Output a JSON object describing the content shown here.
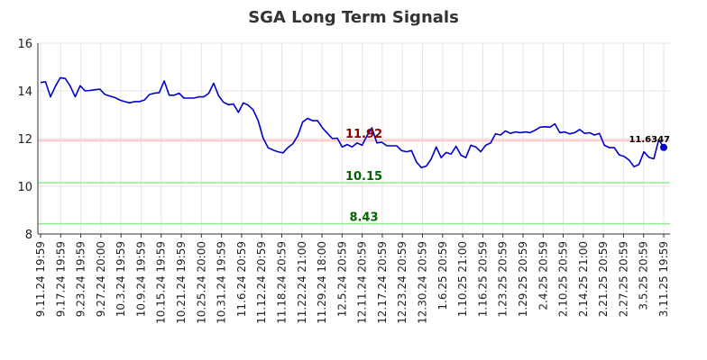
{
  "chart_data": {
    "type": "line",
    "title": "SGA Long Term Signals",
    "xlabel": "",
    "ylabel": "",
    "ylim": [
      8,
      16
    ],
    "yticks": [
      "8",
      "10",
      "12",
      "14",
      "16"
    ],
    "grid": true,
    "colors": {
      "line": "#0000cc",
      "resistance": "#ffcccc",
      "support": "#90ee90",
      "resistance_text": "#8b0000",
      "support_text": "#006400"
    },
    "x_tick_labels": [
      "9.11.24 19:59",
      "9.17.24 19:59",
      "9.23.24 19:59",
      "9.27.24 20:00",
      "10.3.24 19:59",
      "10.9.24 19:59",
      "10.15.24 19:59",
      "10.21.24 19:59",
      "10.25.24 20:00",
      "10.31.24 19:59",
      "11.6.24 20:59",
      "11.12.24 20:59",
      "11.18.24 20:59",
      "11.22.24 21:00",
      "11.29.24 18:00",
      "12.5.24 20:59",
      "12.11.24 20:59",
      "12.17.24 20:59",
      "12.23.24 20:59",
      "12.30.24 20:59",
      "1.6.25 20:59",
      "1.10.25 21:00",
      "1.16.25 20:59",
      "1.23.25 20:59",
      "1.29.25 20:59",
      "2.4.25 20:59",
      "2.10.25 20:59",
      "2.14.25 21:00",
      "2.21.25 20:59",
      "2.27.25 20:59",
      "3.5.25 20:59",
      "3.11.25 19:59"
    ],
    "levels": [
      {
        "label": "11.92",
        "value": 11.92,
        "kind": "resistance"
      },
      {
        "label": "10.15",
        "value": 10.15,
        "kind": "support"
      },
      {
        "label": "8.43",
        "value": 8.43,
        "kind": "support"
      }
    ],
    "last_value_label": "11.6347",
    "series": [
      {
        "values": [
          14.35,
          14.38,
          13.75,
          14.2,
          14.55,
          14.52,
          14.2,
          13.75,
          14.22,
          14.0,
          14.02,
          14.05,
          14.07,
          13.85,
          13.78,
          13.72,
          13.62,
          13.55,
          13.5,
          13.55,
          13.55,
          13.62,
          13.85,
          13.9,
          13.93,
          14.42,
          13.82,
          13.82,
          13.9,
          13.7,
          13.7,
          13.7,
          13.75,
          13.75,
          13.9,
          14.32,
          13.8,
          13.52,
          13.42,
          13.45,
          13.1,
          13.5,
          13.4,
          13.2,
          12.75,
          12.02,
          11.62,
          11.52,
          11.45,
          11.4,
          11.62,
          11.78,
          12.12,
          12.7,
          12.85,
          12.75,
          12.75,
          12.45,
          12.22,
          12.0,
          12.02,
          11.65,
          11.75,
          11.65,
          11.82,
          11.72,
          12.12,
          12.45,
          11.82,
          11.85,
          11.7,
          11.7,
          11.7,
          11.5,
          11.45,
          11.5,
          11.02,
          10.78,
          10.85,
          11.15,
          11.65,
          11.2,
          11.42,
          11.35,
          11.68,
          11.3,
          11.2,
          11.72,
          11.65,
          11.45,
          11.72,
          11.82,
          12.2,
          12.15,
          12.32,
          12.22,
          12.28,
          12.25,
          12.28,
          12.25,
          12.35,
          12.48,
          12.5,
          12.48,
          12.62,
          12.25,
          12.28,
          12.2,
          12.25,
          12.38,
          12.22,
          12.25,
          12.15,
          12.22,
          11.72,
          11.62,
          11.62,
          11.32,
          11.25,
          11.1,
          10.82,
          10.92,
          11.45,
          11.22,
          11.15,
          11.95,
          11.63
        ]
      }
    ]
  }
}
